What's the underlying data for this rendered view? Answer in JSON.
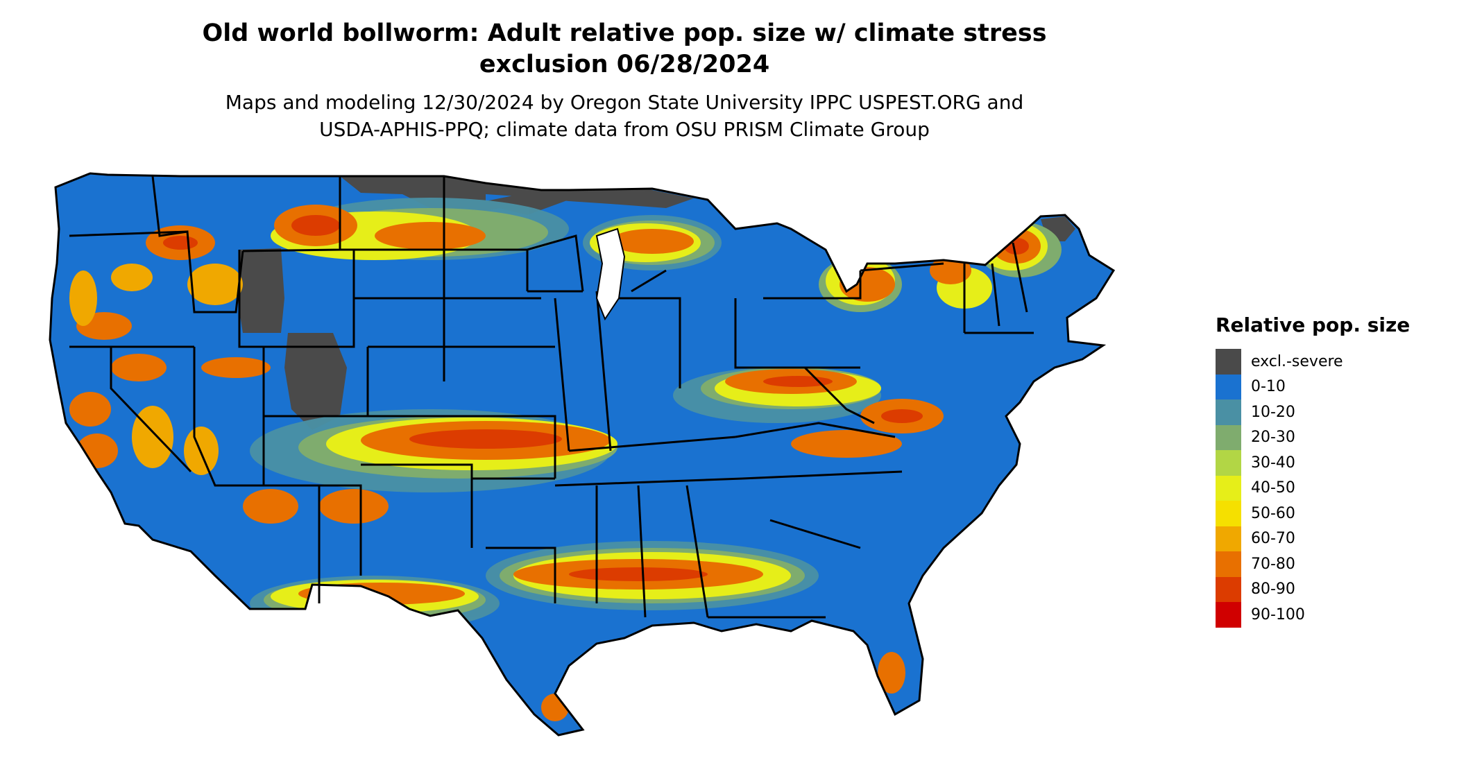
{
  "header": {
    "title_line1": "Old world bollworm: Adult relative pop. size w/ climate stress",
    "title_line2": "exclusion 06/28/2024",
    "subtitle_line1": "Maps and modeling 12/30/2024 by Oregon State University IPPC USPEST.ORG and",
    "subtitle_line2": "USDA-APHIS-PPQ; climate data from OSU PRISM Climate Group"
  },
  "legend": {
    "title": "Relative pop. size",
    "items": [
      {
        "label": "excl.-severe",
        "color": "#4a4a4a"
      },
      {
        "label": "0-10",
        "color": "#1a72d0"
      },
      {
        "label": "10-20",
        "color": "#4a90a4"
      },
      {
        "label": "20-30",
        "color": "#7fac6e"
      },
      {
        "label": "30-40",
        "color": "#b2d645"
      },
      {
        "label": "40-50",
        "color": "#e6ee19"
      },
      {
        "label": "50-60",
        "color": "#f5e000"
      },
      {
        "label": "60-70",
        "color": "#f0a800"
      },
      {
        "label": "70-80",
        "color": "#e87000"
      },
      {
        "label": "80-90",
        "color": "#dc3c00"
      },
      {
        "label": "90-100",
        "color": "#d00000"
      }
    ]
  },
  "map": {
    "region": "Contiguous United States",
    "base_color": "#1a72d0",
    "border_color": "#000000"
  }
}
